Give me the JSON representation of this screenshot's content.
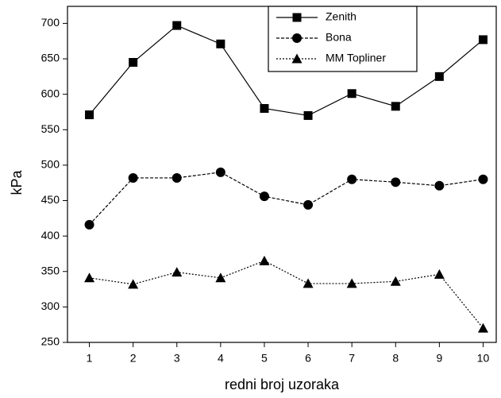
{
  "chart_data": {
    "type": "line",
    "x_label": "redni broj uzoraka",
    "y_label": "kPa",
    "x": [
      1,
      2,
      3,
      4,
      5,
      6,
      7,
      8,
      9,
      10
    ],
    "xlim": [
      0.5,
      10.3
    ],
    "xticks": [
      1,
      2,
      3,
      4,
      5,
      6,
      7,
      8,
      9,
      10
    ],
    "ylim": [
      250,
      724
    ],
    "yticks": [
      250,
      300,
      350,
      400,
      450,
      500,
      550,
      600,
      650,
      700
    ],
    "legend": "top-right",
    "series": [
      {
        "name": "Zenith",
        "color": "#000000",
        "marker": "square",
        "linestyle": "solid",
        "values": [
          571,
          645,
          697,
          671,
          580,
          570,
          601,
          583,
          625,
          677
        ]
      },
      {
        "name": "Bona",
        "color": "#000000",
        "marker": "circle",
        "linestyle": "dashed",
        "values": [
          416,
          482,
          482,
          490,
          456,
          444,
          480,
          476,
          471,
          480
        ]
      },
      {
        "name": "MM Topliner",
        "color": "#000000",
        "marker": "triangle",
        "linestyle": "dotted",
        "values": [
          341,
          332,
          349,
          341,
          365,
          333,
          333,
          336,
          346,
          270
        ]
      }
    ]
  }
}
